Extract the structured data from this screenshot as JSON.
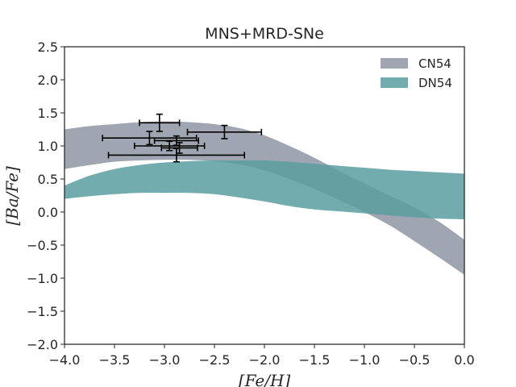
{
  "chart_data": {
    "type": "area",
    "title": "MNS+MRD-SNe",
    "xlabel": "[Fe/H]",
    "ylabel": "[Ba/Fe]",
    "xlim": [
      -4.0,
      0.0
    ],
    "ylim": [
      -2.0,
      2.5
    ],
    "xticks": [
      -4.0,
      -3.5,
      -3.0,
      -2.5,
      -2.0,
      -1.5,
      -1.0,
      -0.5,
      0.0
    ],
    "xtick_labels": [
      "−4.0",
      "−3.5",
      "−3.0",
      "−2.5",
      "−2.0",
      "−1.5",
      "−1.0",
      "−0.5",
      "0.0"
    ],
    "yticks": [
      2.5,
      2.0,
      1.5,
      1.0,
      0.5,
      0.0,
      -0.5,
      -1.0,
      -1.5,
      -2.0
    ],
    "ytick_labels": [
      "2.5",
      "2.0",
      "1.5",
      "1.0",
      "0.5",
      "0.0",
      "−0.5",
      "−1.0",
      "−1.5",
      "−2.0"
    ],
    "grid": false,
    "legend_position": "top-right",
    "series": [
      {
        "name": "CN54",
        "color": "#8e96a3",
        "x": [
          -4.0,
          -3.75,
          -3.5,
          -3.25,
          -3.0,
          -2.75,
          -2.5,
          -2.25,
          -2.0,
          -1.75,
          -1.5,
          -1.25,
          -1.0,
          -0.75,
          -0.5,
          -0.25,
          0.0
        ],
        "upper": [
          1.25,
          1.3,
          1.33,
          1.36,
          1.37,
          1.36,
          1.33,
          1.27,
          1.16,
          1.0,
          0.82,
          0.62,
          0.43,
          0.25,
          0.07,
          -0.15,
          -0.42
        ],
        "lower": [
          0.65,
          0.71,
          0.76,
          0.78,
          0.79,
          0.79,
          0.77,
          0.72,
          0.63,
          0.5,
          0.35,
          0.18,
          0.0,
          -0.2,
          -0.44,
          -0.69,
          -0.95
        ]
      },
      {
        "name": "DN54",
        "color": "#5b9ea0",
        "x": [
          -4.0,
          -3.75,
          -3.5,
          -3.25,
          -3.0,
          -2.75,
          -2.5,
          -2.25,
          -2.0,
          -1.75,
          -1.5,
          -1.25,
          -1.0,
          -0.75,
          -0.5,
          -0.25,
          0.0
        ],
        "upper": [
          0.4,
          0.55,
          0.65,
          0.71,
          0.75,
          0.77,
          0.78,
          0.78,
          0.78,
          0.76,
          0.73,
          0.7,
          0.67,
          0.64,
          0.62,
          0.6,
          0.58
        ],
        "lower": [
          0.2,
          0.24,
          0.27,
          0.29,
          0.29,
          0.29,
          0.27,
          0.22,
          0.16,
          0.09,
          0.04,
          0.01,
          -0.02,
          -0.05,
          -0.08,
          -0.1,
          -0.11
        ]
      }
    ],
    "observations": [
      {
        "x": -3.05,
        "y": 1.35,
        "xerr": 0.2,
        "yerr": 0.13
      },
      {
        "x": -3.15,
        "y": 1.12,
        "xerr": 0.47,
        "yerr": 0.1
      },
      {
        "x": -2.4,
        "y": 1.21,
        "xerr": 0.37,
        "yerr": 0.1
      },
      {
        "x": -2.88,
        "y": 1.08,
        "xerr": 0.22,
        "yerr": 0.07
      },
      {
        "x": -2.95,
        "y": 1.0,
        "xerr": 0.35,
        "yerr": 0.07
      },
      {
        "x": -2.85,
        "y": 0.97,
        "xerr": 0.18,
        "yerr": 0.08
      },
      {
        "x": -2.88,
        "y": 0.86,
        "xerr": 0.68,
        "yerr": 0.1
      }
    ]
  }
}
